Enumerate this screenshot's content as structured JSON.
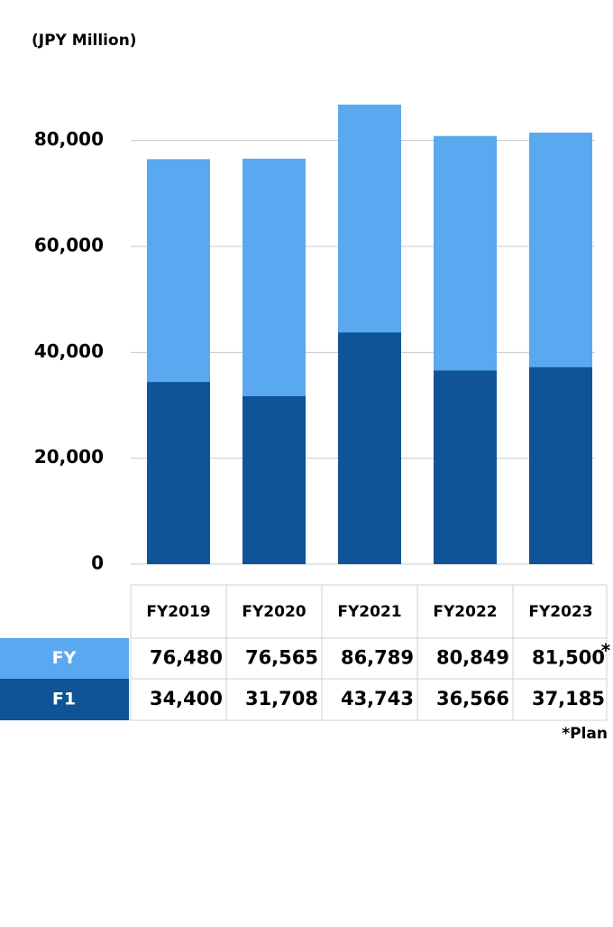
{
  "chart_data": {
    "type": "bar",
    "title": "(JPY Million)",
    "categories": [
      "FY2019",
      "FY2020",
      "FY2021",
      "FY2022",
      "FY2023"
    ],
    "series": [
      {
        "name": "FY",
        "color": "#5aa8f0",
        "values": [
          76480,
          76565,
          86789,
          80849,
          81500
        ],
        "value_labels": [
          "76,480",
          "76,565",
          "86,789",
          "80,849",
          "81,500"
        ]
      },
      {
        "name": "F1",
        "color": "#0e5496",
        "values": [
          34400,
          31708,
          43743,
          36566,
          37185
        ],
        "value_labels": [
          "34,400",
          "31,708",
          "43,743",
          "36,566",
          "37,185"
        ]
      }
    ],
    "plan_marker": "*",
    "annotation": "*Plan",
    "ylim": [
      0,
      90000
    ],
    "yticks": [
      0,
      {
        "value": 20000,
        "label": "20,000"
      },
      {
        "value": 40000,
        "label": "40,000"
      },
      {
        "value": 60000,
        "label": "60,000"
      },
      {
        "value": 80000,
        "label": "80,000"
      }
    ],
    "grid": true
  }
}
